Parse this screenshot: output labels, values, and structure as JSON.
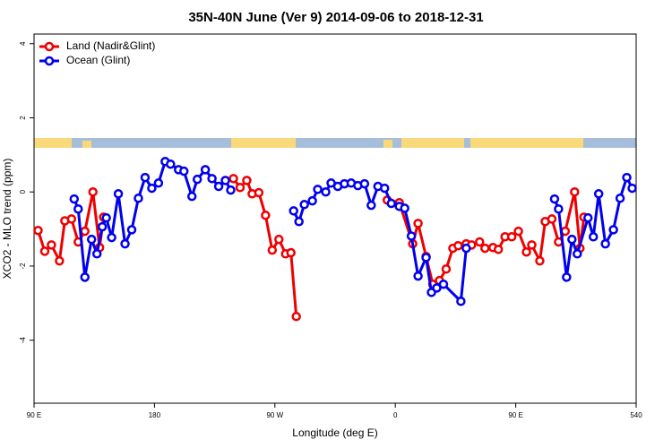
{
  "chart_data": {
    "type": "line",
    "title": "35N-40N June (Ver 9)   2014-09-06 to 2018-12-31",
    "xlabel": "Longitude (deg E)",
    "ylabel": "XCO2 - MLO trend (ppm)",
    "xlim": [
      90,
      540
    ],
    "xticks": [
      {
        "value": 90,
        "label": "90 E"
      },
      180,
      {
        "value": 270,
        "label": "90 W"
      },
      {
        "value": 360,
        "label": "0"
      },
      {
        "value": 450,
        "label": "90 E"
      },
      540
    ],
    "ylim": [
      -5.7,
      4.26
    ],
    "yticks": [
      -4,
      -2,
      0,
      2,
      4
    ],
    "legend": "upper left",
    "series": [
      {
        "name": "Land (Nadir&Glint)",
        "color": "#ee0000",
        "x": [
          93,
          98,
          103,
          109,
          113,
          118,
          123,
          128,
          134,
          139,
          142,
          null,
          239,
          244,
          249,
          253,
          258,
          263,
          268,
          273,
          278,
          282,
          286,
          null,
          354,
          363,
          373,
          377,
          383,
          388,
          393,
          398,
          403,
          407,
          413,
          417,
          423,
          427,
          433,
          437,
          442,
          447,
          452,
          458,
          462,
          468,
          472,
          477,
          482,
          487,
          494,
          498,
          501
        ],
        "values": [
          -1.04,
          -1.6,
          -1.43,
          -1.86,
          -0.78,
          -0.73,
          -1.35,
          -1.06,
          0,
          -1.5,
          -0.68,
          null,
          0.36,
          0.12,
          0.31,
          -0.05,
          -0.02,
          -0.63,
          -1.57,
          -1.28,
          -1.67,
          -1.64,
          -3.36,
          null,
          -0.22,
          -0.29,
          -1.4,
          -0.85,
          -1.74,
          -2.49,
          -2.39,
          -2.08,
          -1.52,
          -1.45,
          -1.4,
          -1.43,
          -1.35,
          -1.52,
          -1.5,
          -1.55,
          -1.21,
          -1.21,
          -1.06,
          -1.62,
          -1.43,
          -1.86,
          -0.8,
          -0.73,
          -1.35,
          -1.06,
          0,
          -1.52,
          -0.68
        ]
      },
      {
        "name": "Ocean (Glint)",
        "color": "#0000ee",
        "x": [
          120,
          123,
          128,
          133,
          137,
          141,
          144,
          148,
          153,
          158,
          163,
          168,
          173,
          178,
          183,
          188,
          192,
          198,
          202,
          208,
          212,
          218,
          223,
          228,
          233,
          237,
          null,
          284,
          288,
          292,
          298,
          302,
          308,
          312,
          317,
          322,
          327,
          332,
          337,
          342,
          347,
          352,
          357,
          363,
          367,
          372,
          377,
          383,
          387,
          391,
          396,
          409,
          413,
          null,
          479,
          482,
          488,
          492,
          496,
          504,
          508,
          512,
          517,
          523,
          528,
          533,
          537
        ],
        "values": [
          -0.19,
          -0.46,
          -2.3,
          -1.28,
          -1.67,
          -0.94,
          -0.7,
          -1.23,
          -0.05,
          -1.4,
          -1.02,
          -0.17,
          0.39,
          0.1,
          0.24,
          0.82,
          0.75,
          0.6,
          0.56,
          -0.12,
          0.34,
          0.6,
          0.36,
          0.15,
          0.31,
          0.05,
          null,
          -0.51,
          -0.8,
          -0.34,
          -0.24,
          0.07,
          0,
          0.24,
          0.15,
          0.22,
          0.24,
          0.17,
          0.22,
          -0.36,
          0.15,
          0.1,
          -0.31,
          -0.39,
          -0.44,
          -1.19,
          -2.27,
          -1.77,
          -2.71,
          -2.59,
          -2.49,
          -2.95,
          -1.52,
          null,
          -0.19,
          -0.46,
          -2.3,
          -1.28,
          -1.67,
          -0.7,
          -1.21,
          -0.05,
          -1.4,
          -1.02,
          -0.17,
          0.39,
          0.1
        ]
      }
    ]
  }
}
